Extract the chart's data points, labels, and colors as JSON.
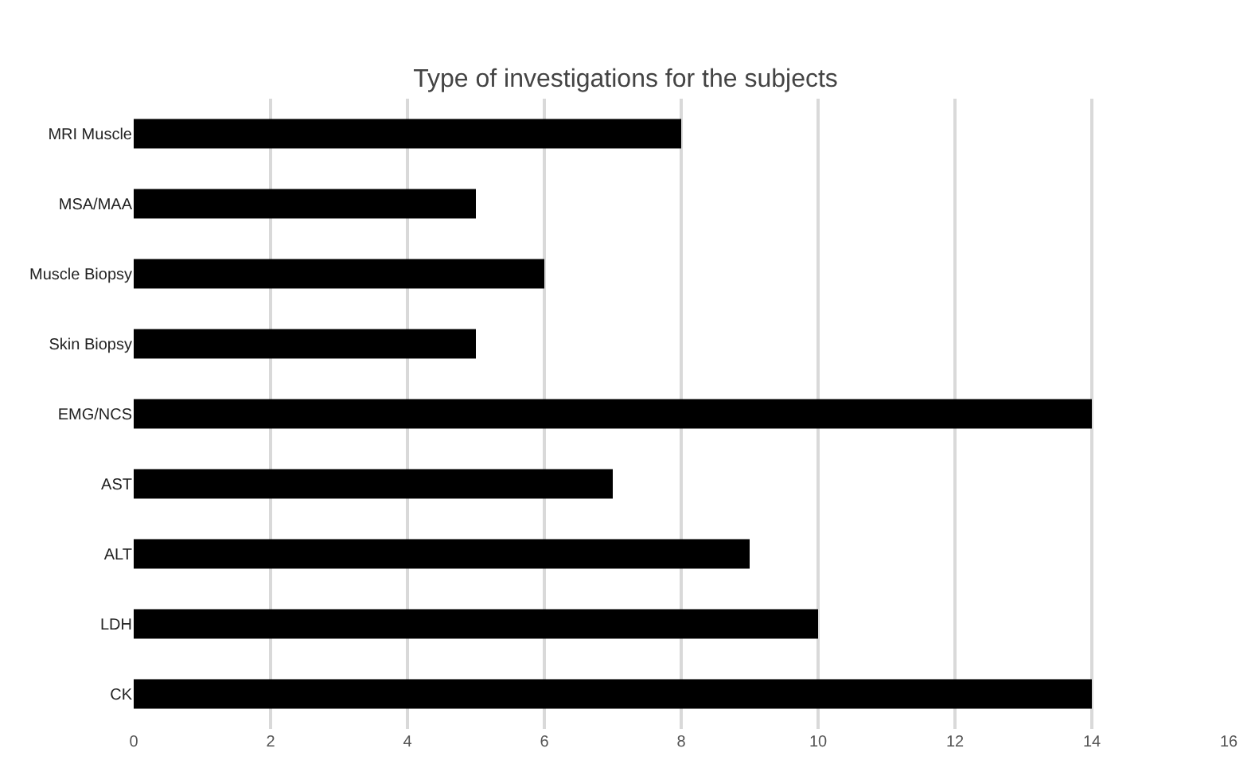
{
  "chart_data": {
    "type": "bar",
    "title": "Type of investigations for the subjects",
    "orientation": "horizontal",
    "categories": [
      "MRI Muscle",
      "MSA/MAA",
      "Muscle Biopsy",
      "Skin Biopsy",
      "EMG/NCS",
      "AST",
      "ALT",
      "LDH",
      "CK"
    ],
    "values": [
      8,
      5,
      6,
      5,
      14,
      7,
      9,
      10,
      14
    ],
    "color": "#000000",
    "xlim": [
      0,
      16
    ],
    "xticks": [
      0,
      2,
      4,
      6,
      8,
      10,
      12,
      14,
      16
    ],
    "grid": "x"
  }
}
